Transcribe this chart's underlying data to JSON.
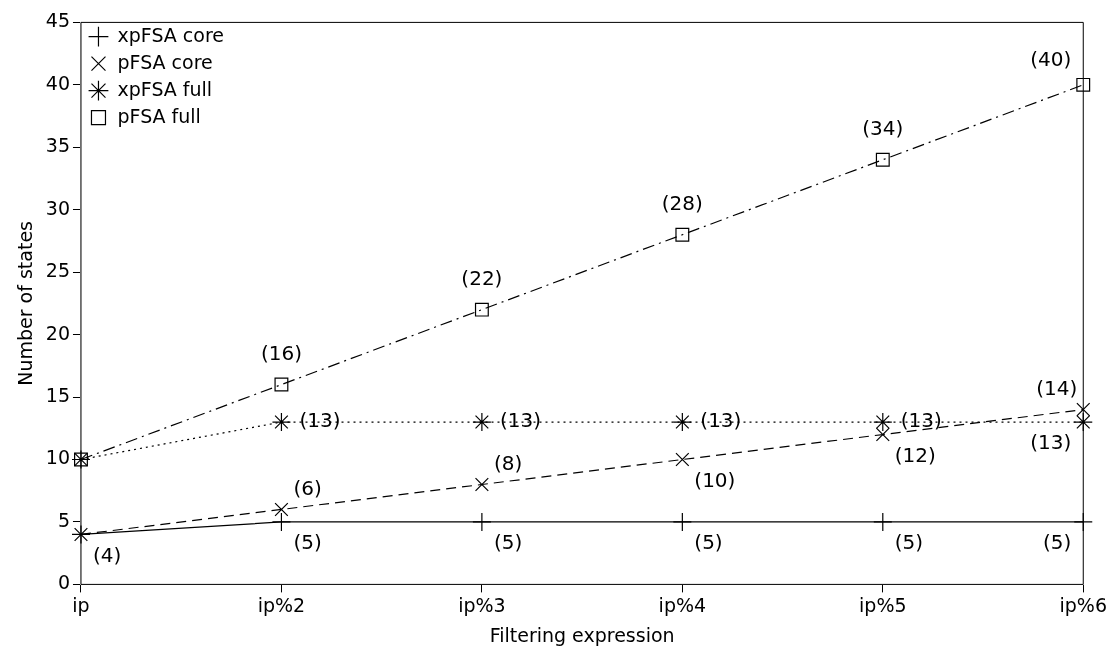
{
  "chart_data": {
    "type": "line",
    "xlabel": "Filtering expression",
    "ylabel": "Number of states",
    "categories": [
      "ip",
      "ip%2",
      "ip%3",
      "ip%4",
      "ip%5",
      "ip%6"
    ],
    "ylim": [
      0,
      45
    ],
    "yticks": [
      0,
      5,
      10,
      15,
      20,
      25,
      30,
      35,
      40,
      45
    ],
    "grid": false,
    "legend": "top left",
    "series": [
      {
        "name": "xpFSA core",
        "color": "#000000",
        "marker": "cross",
        "line_style": "solid",
        "values": [
          4,
          5,
          5,
          5,
          5,
          5
        ],
        "value_labels": [
          "(4)",
          "(5)",
          "(5)",
          "(5)",
          "(5)",
          "(5)"
        ]
      },
      {
        "name": "pFSA core",
        "color": "#000000",
        "marker": "cross",
        "line_style": "dashed",
        "values": [
          4,
          6,
          8,
          10,
          12,
          14
        ],
        "value_labels": [
          null,
          "(6)",
          "(8)",
          "(10)",
          "(12)",
          "(14)"
        ]
      },
      {
        "name": "xpFSA full",
        "color": "#000000",
        "marker": "cross",
        "line_style": "dotted",
        "values": [
          10,
          13,
          13,
          13,
          13,
          13
        ],
        "value_labels": [
          null,
          "(13)",
          "(13)",
          "(13)",
          "(13)",
          "(13)"
        ]
      },
      {
        "name": "pFSA full",
        "color": "#000000",
        "marker": "square",
        "line_style": "dashdot",
        "values": [
          10,
          16,
          22,
          28,
          34,
          40
        ],
        "value_labels": [
          null,
          "(16)",
          "(22)",
          "(28)",
          "(34)",
          "(40)"
        ]
      }
    ]
  }
}
